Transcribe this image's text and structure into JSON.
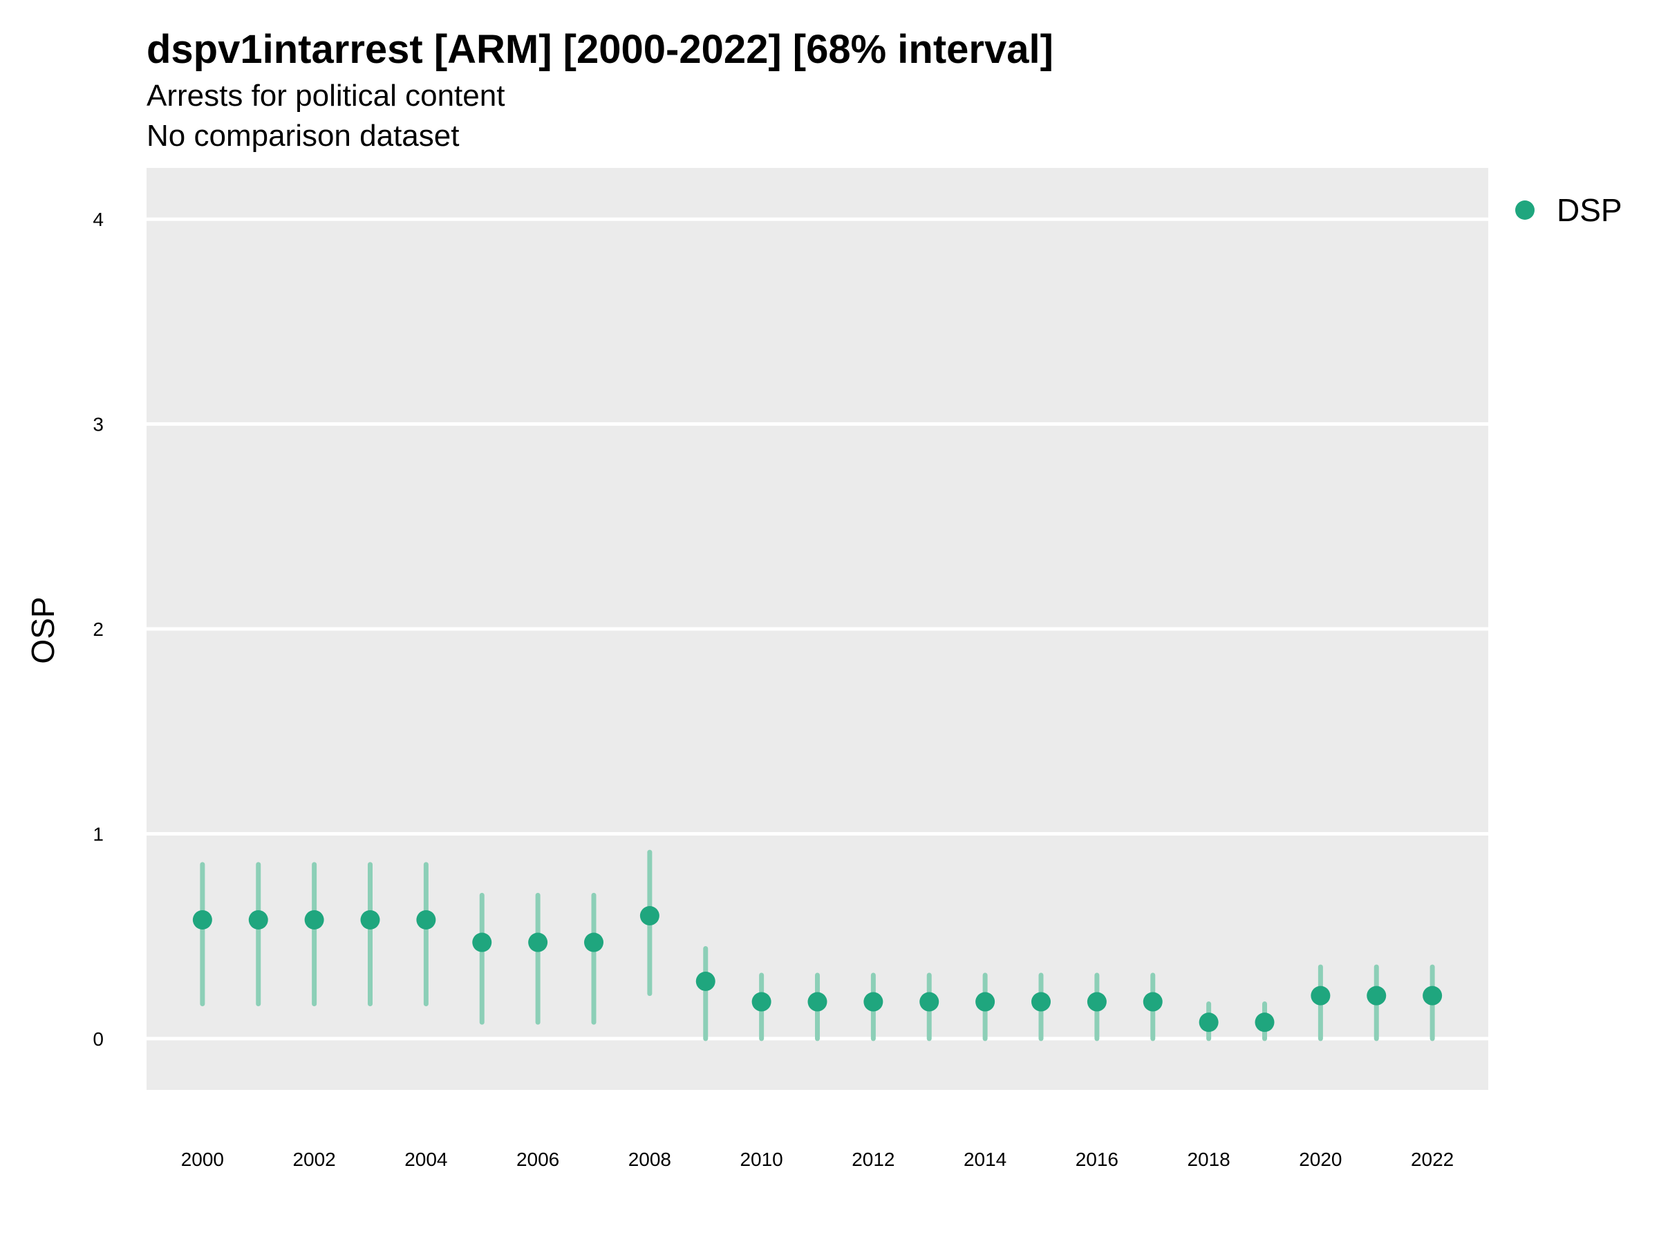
{
  "title": "dspv1intarrest [ARM] [2000-2022] [68% interval]",
  "subtitle": "Arrests for political content",
  "caption": "No comparison dataset",
  "chart_data": {
    "type": "scatter",
    "title": "dspv1intarrest [ARM] [2000-2022] [68% interval]",
    "subtitle": "Arrests for political content",
    "caption": "No comparison dataset",
    "xlabel": "",
    "ylabel": "OSP",
    "x": [
      2000,
      2001,
      2002,
      2003,
      2004,
      2005,
      2006,
      2007,
      2008,
      2009,
      2010,
      2011,
      2012,
      2013,
      2014,
      2015,
      2016,
      2017,
      2018,
      2019,
      2020,
      2021,
      2022
    ],
    "x_ticks": [
      2000,
      2002,
      2004,
      2006,
      2008,
      2010,
      2012,
      2014,
      2016,
      2018,
      2020,
      2022
    ],
    "y_ticks": [
      0,
      1,
      2,
      3,
      4
    ],
    "ylim": [
      -0.25,
      4.25
    ],
    "xlim": [
      1999.0,
      2023.0
    ],
    "grid": true,
    "legend_position": "right",
    "series": [
      {
        "name": "DSP",
        "color": "#1fa67e",
        "interval_color": "#8ccfb7",
        "values": [
          0.58,
          0.58,
          0.58,
          0.58,
          0.58,
          0.47,
          0.47,
          0.47,
          0.6,
          0.28,
          0.18,
          0.18,
          0.18,
          0.18,
          0.18,
          0.18,
          0.18,
          0.18,
          0.08,
          0.08,
          0.21,
          0.21,
          0.21
        ],
        "lower": [
          0.17,
          0.17,
          0.17,
          0.17,
          0.17,
          0.08,
          0.08,
          0.08,
          0.22,
          0.0,
          0.0,
          0.0,
          0.0,
          0.0,
          0.0,
          0.0,
          0.0,
          0.0,
          0.0,
          0.0,
          0.0,
          0.0,
          0.0
        ],
        "upper": [
          0.85,
          0.85,
          0.85,
          0.85,
          0.85,
          0.7,
          0.7,
          0.7,
          0.91,
          0.44,
          0.31,
          0.31,
          0.31,
          0.31,
          0.31,
          0.31,
          0.31,
          0.31,
          0.17,
          0.17,
          0.35,
          0.35,
          0.35
        ]
      }
    ]
  }
}
